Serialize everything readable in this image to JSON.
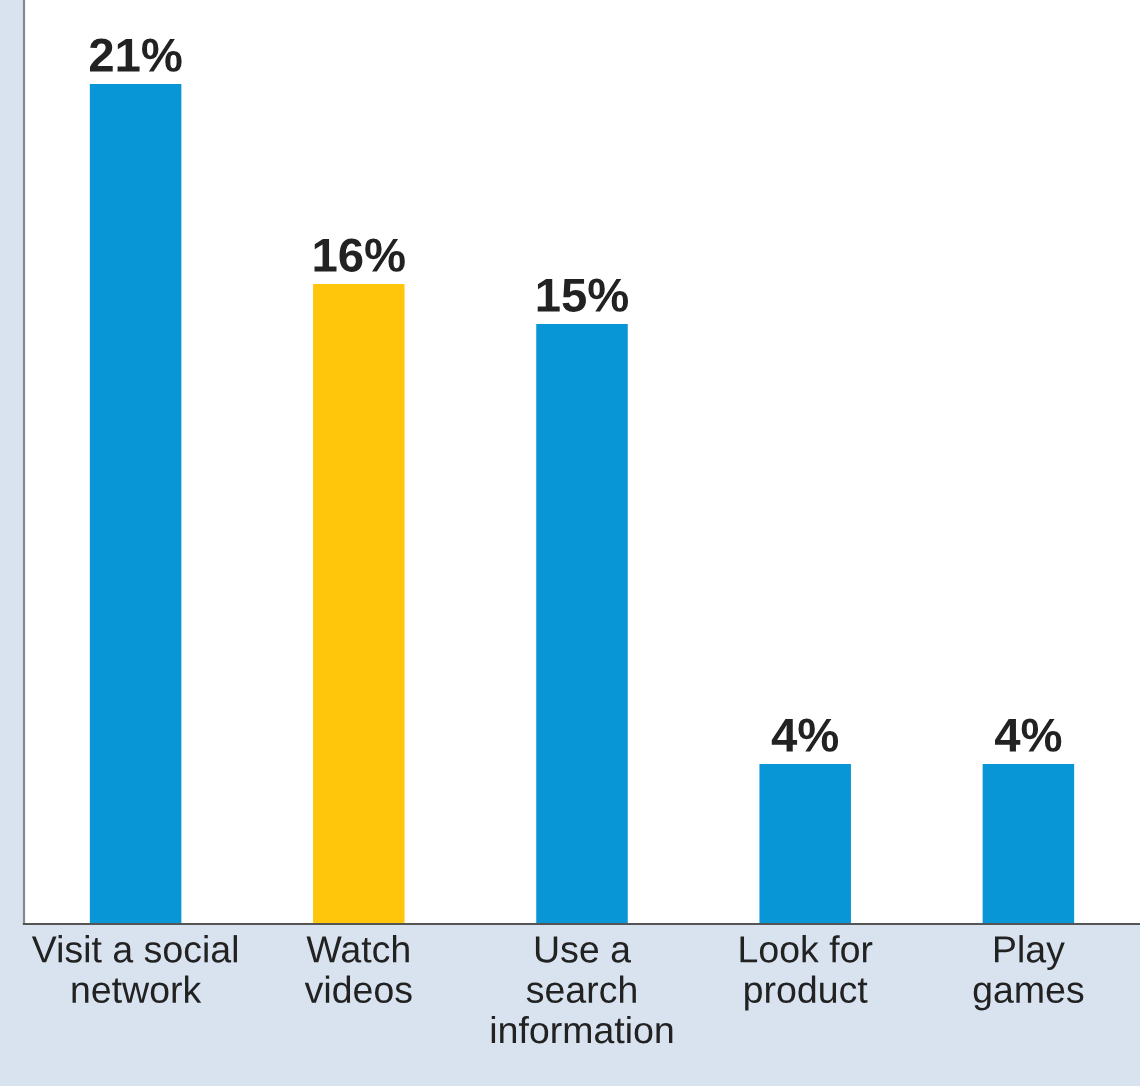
{
  "chart_data": {
    "type": "bar",
    "categories": [
      "Visit a social\nnetwork",
      "Watch\nvideos",
      "Use a\nsearch\ninformation",
      "Look for\nproduct",
      "Play\ngames"
    ],
    "values": [
      21,
      16,
      15,
      4,
      4
    ],
    "colors": [
      "#0996d6",
      "#ffc60b",
      "#0996d6",
      "#0996d6",
      "#0996d6"
    ],
    "value_labels": [
      "21%",
      "16%",
      "15%",
      "4%",
      "4%"
    ],
    "grid": false,
    "legend": false
  }
}
